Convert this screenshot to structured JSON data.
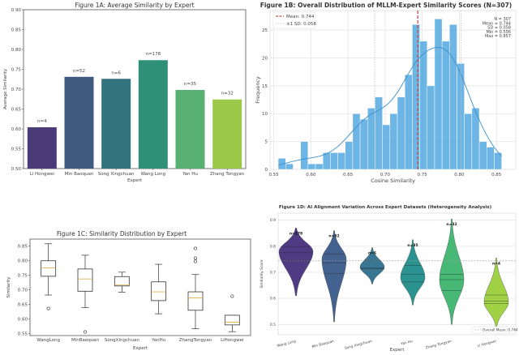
{
  "chart_data": [
    {
      "type": "bar",
      "title": "Figure 1A: Average Similarity by Expert",
      "xlabel": "Expert",
      "ylabel": "Average Similarity",
      "ylim": [
        0.5,
        0.9
      ],
      "yticks": [
        "0.50",
        "0.55",
        "0.60",
        "0.65",
        "0.70",
        "0.75",
        "0.80",
        "0.85",
        "0.90"
      ],
      "categories": [
        "Li Hongwei",
        "Min Baoquan",
        "Song Xingchuan",
        "Wang Long",
        "Yan Hu",
        "Zhang Tongyan"
      ],
      "values": [
        0.604,
        0.731,
        0.726,
        0.773,
        0.698,
        0.674
      ],
      "data_labels": [
        "n=4",
        "n=52",
        "n=6",
        "n=178",
        "n=35",
        "n=32"
      ],
      "colors": [
        "#4a3a78",
        "#3f5a7e",
        "#33737e",
        "#2f9078",
        "#59b074",
        "#9cc84a"
      ],
      "grid": false
    },
    {
      "type": "bar",
      "subtype": "histogram with KDE",
      "title": "Figure 1B: Overall Distribution of MLLM-Expert Similarity Scores (N=307)",
      "xlabel": "Cosine Similarity",
      "ylabel": "Frequency",
      "xlim": [
        0.545,
        0.876
      ],
      "ylim": [
        0,
        28.5
      ],
      "xticks": [
        "0.55",
        "0.60",
        "0.65",
        "0.70",
        "0.75",
        "0.80",
        "0.85"
      ],
      "yticks": [
        "0",
        "5",
        "10",
        "15",
        "20",
        "25"
      ],
      "bin_range": [
        0.556,
        0.857
      ],
      "counts": [
        2,
        1,
        0,
        5,
        1,
        1,
        3,
        3,
        3,
        5,
        10,
        9,
        11,
        13,
        8,
        10,
        13,
        17,
        26,
        23,
        15,
        27,
        23,
        26,
        19,
        10,
        11,
        5,
        4,
        3
      ],
      "mean": 0.744,
      "sd": 0.058,
      "legend": [
        "Mean: 0.744",
        "±1 SD: 0.058"
      ],
      "legend_position": "top-left",
      "stats_text": [
        "N = 307",
        "Mean = 0.744",
        "SD = 0.058",
        "Min = 0.556",
        "Max = 0.857"
      ],
      "bar_color": "#5dade2",
      "mean_color": "#c0504d",
      "grid": true
    },
    {
      "type": "box",
      "title": "Figure 1C:   Similarity Distribution by Expert",
      "xlabel": "Expert",
      "ylabel": "Similarity",
      "ylim": [
        0.54,
        0.865
      ],
      "yticks": [
        "0.55",
        "0.60",
        "0.65",
        "0.70",
        "0.75",
        "0.80",
        "0.85"
      ],
      "categories": [
        "WangLong",
        "MinBaoquan",
        "SongXingchuan",
        "YanHu",
        "ZhangTongyan",
        "LiHongwei"
      ],
      "boxes": [
        {
          "whisker_low": 0.682,
          "q1": 0.746,
          "median": 0.775,
          "q3": 0.799,
          "whisker_high": 0.857,
          "outliers": [
            0.636
          ]
        },
        {
          "whisker_low": 0.639,
          "q1": 0.695,
          "median": 0.737,
          "q3": 0.771,
          "whisker_high": 0.818,
          "outliers": [
            0.556
          ]
        },
        {
          "whisker_low": 0.692,
          "q1": 0.713,
          "median": 0.716,
          "q3": 0.745,
          "whisker_high": 0.76,
          "outliers": []
        },
        {
          "whisker_low": 0.618,
          "q1": 0.663,
          "median": 0.693,
          "q3": 0.727,
          "whisker_high": 0.787,
          "outliers": []
        },
        {
          "whisker_low": 0.567,
          "q1": 0.63,
          "median": 0.672,
          "q3": 0.693,
          "whisker_high": 0.752,
          "outliers": [
            0.797,
            0.808,
            0.841
          ]
        },
        {
          "whisker_low": 0.557,
          "q1": 0.58,
          "median": 0.589,
          "q3": 0.613,
          "whisker_high": 0.613,
          "outliers": [
            0.678
          ]
        }
      ],
      "median_color": "#e0b050",
      "grid": false
    },
    {
      "type": "violin",
      "title": "Figure 1D:  AI Alignment Variation Across Expert Datasets (Heterogeneity Analysis)",
      "xlabel": "Expert",
      "ylabel": "Similarity Score",
      "ylim": [
        0.46,
        0.92
      ],
      "yticks": [
        "0.5",
        "0.6",
        "0.7",
        "0.8",
        "0.9"
      ],
      "categories": [
        "Wang Long",
        "Min Baoquan",
        "Song Xingchuan",
        "Yan Hu",
        "Zhang Tongyan",
        "Li Hongwei"
      ],
      "violins": [
        {
          "min": 0.61,
          "max": 0.87,
          "peak": 0.78,
          "q1": 0.746,
          "median": 0.775,
          "q3": 0.799,
          "label": "n=178"
        },
        {
          "min": 0.51,
          "max": 0.86,
          "peak": 0.75,
          "q1": 0.695,
          "median": 0.737,
          "q3": 0.771,
          "label": "n=52"
        },
        {
          "min": 0.655,
          "max": 0.795,
          "peak": 0.72,
          "q1": 0.713,
          "median": 0.716,
          "q3": 0.745,
          "label": "n=6"
        },
        {
          "min": 0.575,
          "max": 0.825,
          "peak": 0.68,
          "q1": 0.663,
          "median": 0.693,
          "q3": 0.727,
          "label": "n=35"
        },
        {
          "min": 0.5,
          "max": 0.905,
          "peak": 0.67,
          "q1": 0.63,
          "median": 0.672,
          "q3": 0.693,
          "label": "n=32"
        },
        {
          "min": 0.485,
          "max": 0.755,
          "peak": 0.585,
          "q1": 0.58,
          "median": 0.589,
          "q3": 0.613,
          "label": "n=4"
        }
      ],
      "colors": [
        "#46307e",
        "#3b5a8a",
        "#2e6f8e",
        "#1f8e8b",
        "#3fb56f",
        "#9ccf3c"
      ],
      "overall_mean": 0.744,
      "legend": [
        "Overall Mean: 0.744"
      ],
      "legend_position": "bottom-right",
      "grid": true
    }
  ]
}
